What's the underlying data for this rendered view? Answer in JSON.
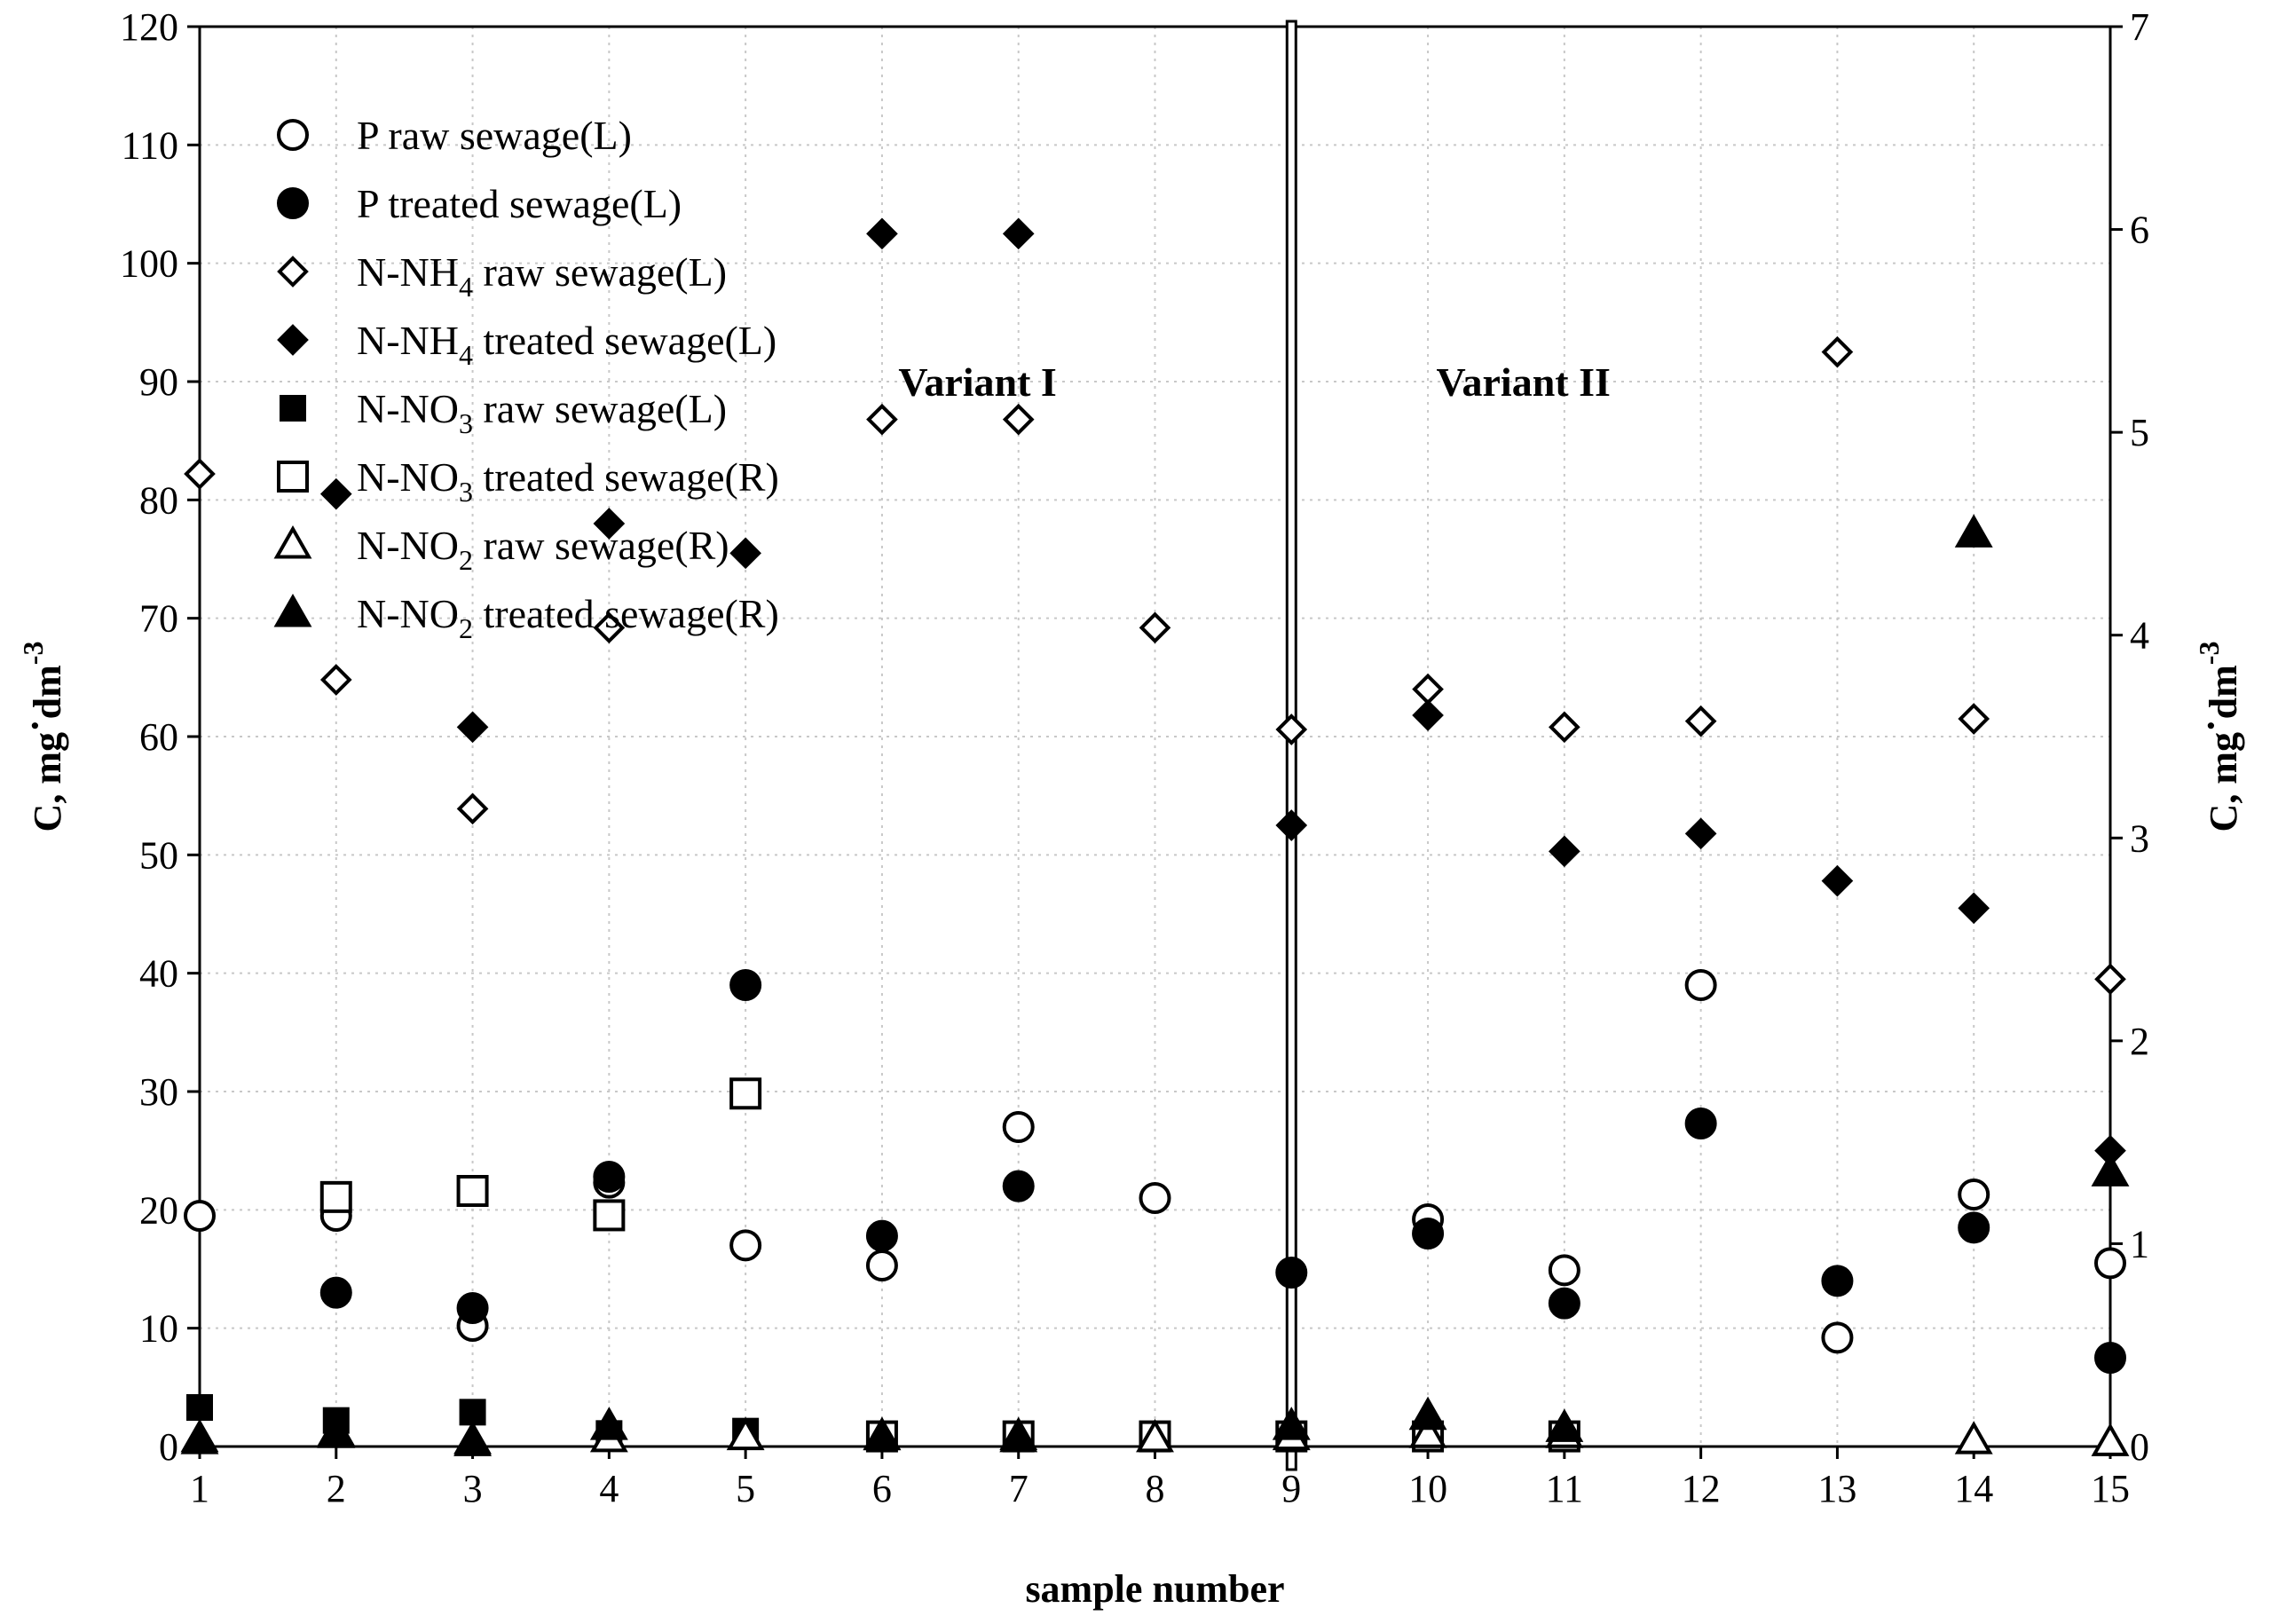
{
  "chart_data": {
    "type": "scatter",
    "xlabel": "sample number",
    "ylabel_left": "C, mg·dm-3",
    "ylabel_right": "C, mg·dm-3",
    "ylabel_parts": {
      "main": "C, mg",
      "dot": "·",
      "unit": "dm",
      "exp": "-3"
    },
    "xlim": [
      1,
      15
    ],
    "ylim_left": [
      0,
      120
    ],
    "ylim_right": [
      0,
      7
    ],
    "x_ticks": [
      1,
      2,
      3,
      4,
      5,
      6,
      7,
      8,
      9,
      10,
      11,
      12,
      13,
      14,
      15
    ],
    "y_ticks_left": [
      0,
      10,
      20,
      30,
      40,
      50,
      60,
      70,
      80,
      90,
      100,
      110,
      120
    ],
    "y_ticks_right": [
      0,
      1,
      2,
      3,
      4,
      5,
      6,
      7
    ],
    "grid": true,
    "legend_position": "top-left",
    "divider_x": 9,
    "annotations": [
      {
        "text": "Variant I",
        "x": 6.7,
        "y": 90
      },
      {
        "text": "Variant II",
        "x": 10.7,
        "y": 90
      }
    ],
    "series": [
      {
        "name": "P raw sewage(L)",
        "label_parts": [
          "P raw sewage(L)"
        ],
        "axis": "left",
        "marker": "circle-open",
        "points": [
          [
            1,
            19.5
          ],
          [
            2,
            19.5
          ],
          [
            3,
            10.2
          ],
          [
            4,
            22.3
          ],
          [
            5,
            17
          ],
          [
            6,
            15.3
          ],
          [
            7,
            27
          ],
          [
            8,
            21
          ],
          [
            10,
            19.2
          ],
          [
            11,
            14.9
          ],
          [
            12,
            39
          ],
          [
            13,
            9.2
          ],
          [
            14,
            21.3
          ],
          [
            15,
            15.5
          ]
        ]
      },
      {
        "name": "P treated sewage(L)",
        "label_parts": [
          "P treated sewage(L)"
        ],
        "axis": "left",
        "marker": "circle-filled",
        "points": [
          [
            2,
            13
          ],
          [
            3,
            11.7
          ],
          [
            4,
            22.8
          ],
          [
            5,
            39
          ],
          [
            6,
            17.8
          ],
          [
            7,
            22
          ],
          [
            9,
            14.7
          ],
          [
            10,
            18
          ],
          [
            11,
            12.1
          ],
          [
            12,
            27.3
          ],
          [
            13,
            14
          ],
          [
            14,
            18.5
          ],
          [
            15,
            7.5
          ]
        ]
      },
      {
        "name": "N-NH4 raw sewage(L)",
        "label_parts": [
          "N-NH",
          "4",
          " raw sewage(L)"
        ],
        "axis": "left",
        "marker": "diamond-open",
        "points": [
          [
            1,
            82.2
          ],
          [
            2,
            64.8
          ],
          [
            3,
            53.9
          ],
          [
            4,
            69.2
          ],
          [
            6,
            86.8
          ],
          [
            7,
            86.8
          ],
          [
            8,
            69.2
          ],
          [
            9,
            60.6
          ],
          [
            10,
            64
          ],
          [
            11,
            60.8
          ],
          [
            12,
            61.3
          ],
          [
            13,
            92.5
          ],
          [
            14,
            61.5
          ],
          [
            15,
            39.5
          ]
        ]
      },
      {
        "name": "N-NH4 treated sewage(L)",
        "label_parts": [
          "N-NH",
          "4",
          " treated sewage(L)"
        ],
        "axis": "left",
        "marker": "diamond-filled",
        "points": [
          [
            2,
            80.5
          ],
          [
            3,
            60.8
          ],
          [
            4,
            78
          ],
          [
            5,
            75.5
          ],
          [
            6,
            102.5
          ],
          [
            7,
            102.5
          ],
          [
            9,
            52.5
          ],
          [
            10,
            61.8
          ],
          [
            11,
            50.3
          ],
          [
            12,
            51.8
          ],
          [
            13,
            47.8
          ],
          [
            14,
            45.5
          ],
          [
            15,
            25
          ]
        ]
      },
      {
        "name": "N-NO3 raw sewage(L)",
        "label_parts": [
          "N-NO",
          "3",
          " raw sewage(L)"
        ],
        "axis": "left",
        "marker": "square-filled",
        "points": [
          [
            1,
            3.3
          ],
          [
            2,
            2.2
          ],
          [
            3,
            2.9
          ],
          [
            4,
            1.1
          ],
          [
            5,
            1.3
          ],
          [
            6,
            0.8
          ],
          [
            7,
            0.8
          ],
          [
            8,
            0.8
          ],
          [
            9,
            0.8
          ],
          [
            10,
            0.9
          ],
          [
            11,
            0.8
          ]
        ]
      },
      {
        "name": "N-NO3 treated sewage(R)",
        "label_parts": [
          "N-NO",
          "3",
          " treated sewage(R)"
        ],
        "axis": "right",
        "marker": "square-open",
        "points": [
          [
            2,
            1.23
          ],
          [
            3,
            1.26
          ],
          [
            4,
            1.14
          ],
          [
            5,
            1.74
          ],
          [
            6,
            0.05
          ],
          [
            7,
            0.05
          ],
          [
            8,
            0.05
          ],
          [
            9,
            0.05
          ],
          [
            10,
            0.05
          ],
          [
            11,
            0.05
          ]
        ]
      },
      {
        "name": "N-NO2 raw sewage(R)",
        "label_parts": [
          "N-NO",
          "2",
          " raw sewage(R)"
        ],
        "axis": "right",
        "marker": "triangle-open",
        "points": [
          [
            1,
            0.04
          ],
          [
            2,
            0.07
          ],
          [
            3,
            0.03
          ],
          [
            4,
            0.04
          ],
          [
            5,
            0.05
          ],
          [
            6,
            0.05
          ],
          [
            7,
            0.05
          ],
          [
            8,
            0.04
          ],
          [
            9,
            0.05
          ],
          [
            10,
            0.06
          ],
          [
            11,
            0.06
          ],
          [
            14,
            0.03
          ],
          [
            15,
            0.02
          ]
        ]
      },
      {
        "name": "N-NO2 treated sewage(R)",
        "label_parts": [
          "N-NO",
          "2",
          " treated sewage(R)"
        ],
        "axis": "right",
        "marker": "triangle-filled",
        "points": [
          [
            1,
            0.03
          ],
          [
            2,
            0.06
          ],
          [
            3,
            0.02
          ],
          [
            4,
            0.1
          ],
          [
            6,
            0.05
          ],
          [
            7,
            0.04
          ],
          [
            9,
            0.1
          ],
          [
            10,
            0.15
          ],
          [
            11,
            0.09
          ],
          [
            14,
            4.5
          ],
          [
            15,
            1.35
          ]
        ]
      }
    ]
  }
}
